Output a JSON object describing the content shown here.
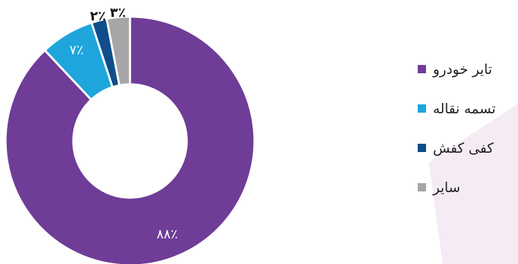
{
  "chart_data": {
    "type": "pie",
    "subtype": "donut",
    "slices": [
      {
        "label": "تایر خودرو",
        "value": 88,
        "display": "۸۸٪",
        "color": "#6F3C97",
        "label_color": "#ffffff"
      },
      {
        "label": "تسمه نقاله",
        "value": 7,
        "display": "۷٪",
        "color": "#1EA5DC",
        "label_color": "#ffffff"
      },
      {
        "label": "کفی کفش",
        "value": 2,
        "display": "۲٪",
        "color": "#0F4E8A",
        "label_color": "#111111"
      },
      {
        "label": "سایر",
        "value": 3,
        "display": "۳٪",
        "color": "#A6A6A8",
        "label_color": "#111111"
      }
    ],
    "legend": {
      "placement": "right"
    }
  }
}
